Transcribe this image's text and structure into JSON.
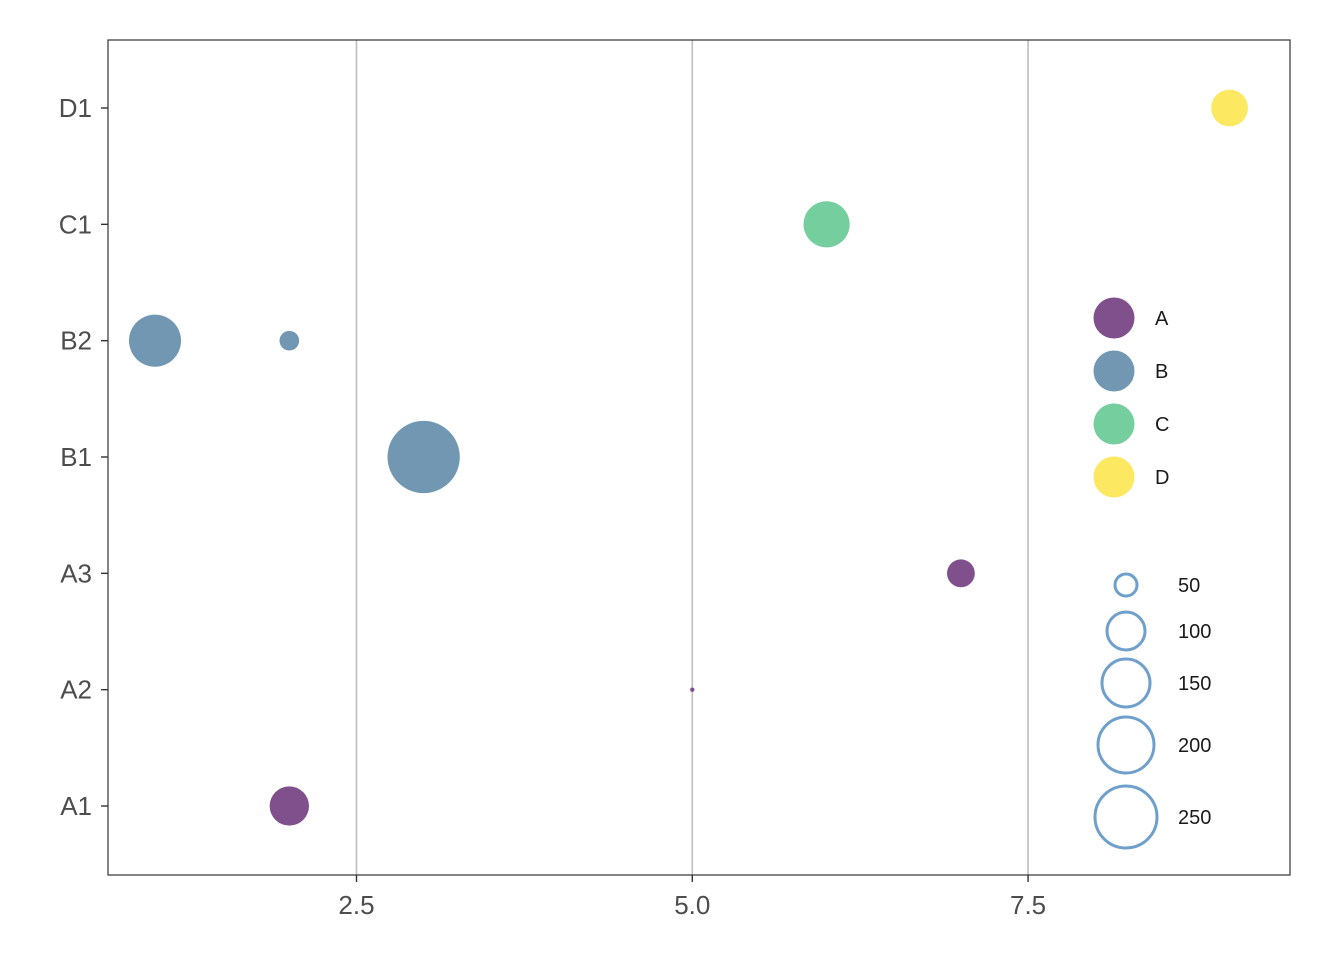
{
  "chart_data": {
    "type": "scatter",
    "title": "",
    "xlabel": "",
    "ylabel": "",
    "xlim": [
      0.65,
      9.45
    ],
    "x_ticks": [
      2.5,
      5.0,
      7.5
    ],
    "x_tick_labels": [
      "2.5",
      "5.0",
      "7.5"
    ],
    "y_categories": [
      "A1",
      "A2",
      "A3",
      "B1",
      "B2",
      "C1",
      "D1"
    ],
    "grid": {
      "vertical_major": true,
      "horizontal": false
    },
    "groups": [
      {
        "name": "A",
        "color": "#7b4a87"
      },
      {
        "name": "B",
        "color": "#6c94b0"
      },
      {
        "name": "C",
        "color": "#6fcc9b"
      },
      {
        "name": "D",
        "color": "#fce75c"
      }
    ],
    "points": [
      {
        "x": 2,
        "y": "A1",
        "group": "A",
        "size": 80
      },
      {
        "x": 5,
        "y": "A2",
        "group": "A",
        "size": 1
      },
      {
        "x": 7,
        "y": "A3",
        "group": "A",
        "size": 40
      },
      {
        "x": 3,
        "y": "B1",
        "group": "B",
        "size": 270
      },
      {
        "x": 1,
        "y": "B2",
        "group": "B",
        "size": 140
      },
      {
        "x": 2,
        "y": "B2",
        "group": "B",
        "size": 20
      },
      {
        "x": 6,
        "y": "C1",
        "group": "C",
        "size": 110
      },
      {
        "x": 9,
        "y": "D1",
        "group": "D",
        "size": 70
      }
    ],
    "size_legend": {
      "breaks": [
        50,
        100,
        150,
        200,
        250
      ],
      "labels": [
        "50",
        "100",
        "150",
        "200",
        "250"
      ],
      "stroke_color": "#6f9fcb"
    },
    "legend_placement": "right-inside"
  }
}
